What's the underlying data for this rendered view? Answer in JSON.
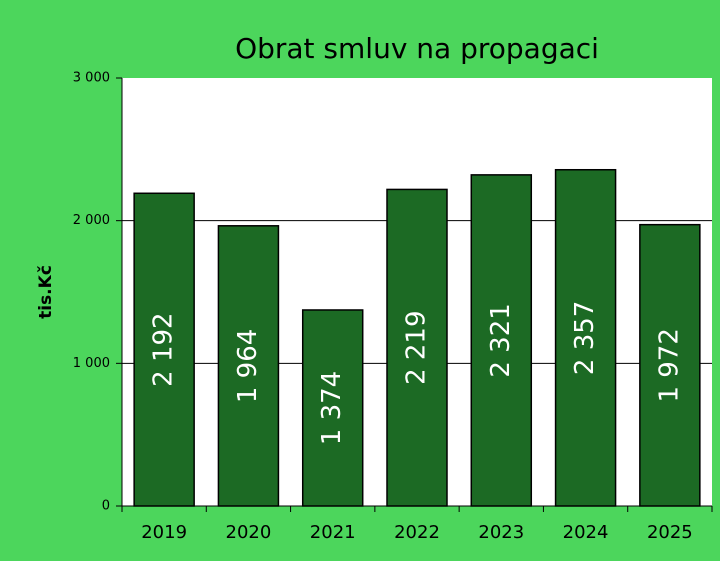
{
  "chart_data": {
    "type": "bar",
    "title": "Obrat smluv na propagaci",
    "ylabel": "tis.Kč",
    "categories": [
      "2019",
      "2020",
      "2021",
      "2022",
      "2023",
      "2024",
      "2025"
    ],
    "values": [
      2192,
      1964,
      1374,
      2219,
      2321,
      2357,
      1972
    ],
    "value_labels": [
      "2 192",
      "1 964",
      "1 374",
      "2 219",
      "2 321",
      "2 357",
      "1 972"
    ],
    "color": "#1c6a24",
    "ylim": [
      0,
      3000
    ],
    "yticks": [
      0,
      {
        "value": 1000,
        "label": "1 000"
      },
      {
        "value": 2000,
        "label": "2 000"
      },
      {
        "value": 3000,
        "label": "3 000"
      }
    ],
    "grid": true
  }
}
